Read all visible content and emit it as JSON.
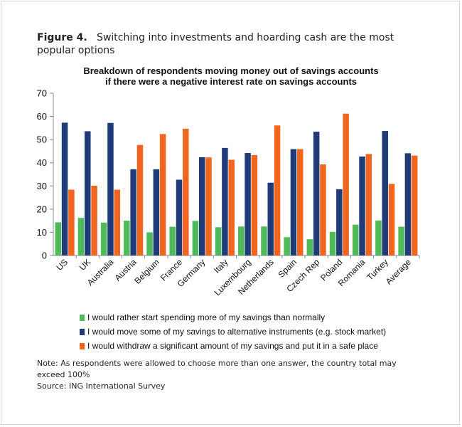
{
  "figure": {
    "label": "Figure 4",
    "caption": "Switching into investments and hoarding cash are the most popular options"
  },
  "note": {
    "text": "Note: As respondents were allowed to choose more than one answer, the country total may exceed 100%",
    "source": "Source: ING International Survey"
  },
  "colors": {
    "green": "#4fba5a",
    "blue": "#1f3c78",
    "orange": "#f0651f"
  },
  "chart_data": {
    "type": "bar",
    "title": "Breakdown of respondents moving money out of savings accounts",
    "subtitle": "if there were a negative interest rate on savings accounts",
    "xlabel": "",
    "ylabel": "",
    "ylim": [
      0,
      70
    ],
    "yticks": [
      "0",
      "10",
      "20",
      "30",
      "40",
      "50",
      "60",
      "70"
    ],
    "grid": false,
    "legend_position": "bottom",
    "categories": [
      "US",
      "UK",
      "Australia",
      "Austria",
      "Belgium",
      "France",
      "Germany",
      "Italy",
      "Luxembourg",
      "Netherlands",
      "Spain",
      "Czech Rep",
      "Poland",
      "Romania",
      "Turkey",
      "Average"
    ],
    "series": [
      {
        "name": "I would rather start spending more of my savings than normally",
        "color": "#4fba5a",
        "values": [
          14.3,
          16.2,
          14.2,
          15.0,
          10.0,
          12.4,
          14.9,
          12.2,
          12.5,
          12.5,
          7.9,
          7.0,
          10.2,
          13.3,
          15.1,
          12.4
        ]
      },
      {
        "name": "I would move some of my savings to alternative instruments (e.g. stock market)",
        "color": "#1f3c78",
        "values": [
          57.3,
          53.6,
          57.2,
          37.2,
          37.2,
          32.7,
          42.4,
          46.4,
          44.2,
          31.4,
          45.9,
          53.4,
          28.6,
          42.7,
          53.7,
          44.1
        ]
      },
      {
        "name": "I would withdraw a significant amount of my savings and put it in a safe place",
        "color": "#f0651f",
        "values": [
          28.4,
          30.1,
          28.4,
          47.7,
          52.4,
          54.7,
          42.3,
          41.3,
          43.3,
          56.1,
          45.9,
          39.3,
          61.2,
          43.8,
          30.9,
          43.1
        ]
      }
    ]
  }
}
